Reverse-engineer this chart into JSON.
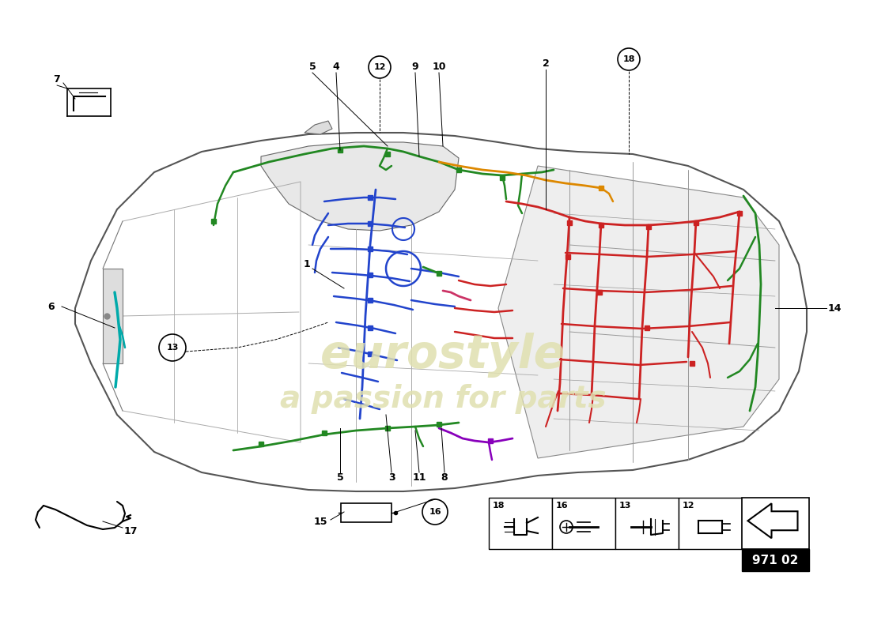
{
  "page_ref": "971 02",
  "bg_color": "#ffffff",
  "car_color": "#888888",
  "panel_color": "#bbbbbb",
  "watermark1": "eurostyle",
  "watermark2": "a passion for parts",
  "watermark_color": "#e0e0b0",
  "wiring": {
    "blue": "#2244cc",
    "green": "#228822",
    "red": "#cc2222",
    "orange": "#dd8800",
    "cyan": "#00aaaa",
    "purple": "#8800bb",
    "pink": "#cc3366",
    "yellow_green": "#88bb00"
  }
}
